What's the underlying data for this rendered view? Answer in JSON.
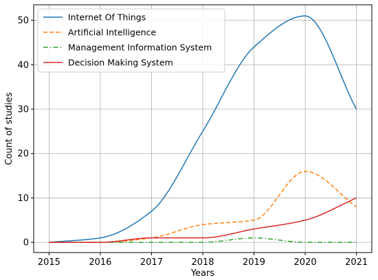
{
  "chart_data": {
    "type": "line",
    "xlabel": "Years",
    "ylabel": "Count of studies",
    "x": [
      2015,
      2016,
      2017,
      2018,
      2019,
      2020,
      2021
    ],
    "xlim": [
      2014.7,
      2021.3
    ],
    "ylim": [
      -2.3,
      53.5
    ],
    "yticks": [
      0,
      10,
      20,
      30,
      40,
      50
    ],
    "grid": true,
    "legend_position": "top-left",
    "series": [
      {
        "name": "Internet Of Things",
        "values": [
          0,
          1,
          7,
          25,
          44,
          51,
          30
        ],
        "color": "#1f77b4",
        "style": "solid"
      },
      {
        "name": "Artificial Intelligence",
        "values": [
          0,
          0,
          1,
          4,
          5,
          16,
          8
        ],
        "color": "#ff7f0e",
        "style": "dashed"
      },
      {
        "name": "Management Information System",
        "values": [
          0,
          0,
          0,
          0,
          1,
          0,
          0
        ],
        "color": "#2ca02c",
        "style": "dashdot"
      },
      {
        "name": "Decision Making System",
        "values": [
          0,
          0,
          1,
          1,
          3,
          5,
          10
        ],
        "color": "#d62728",
        "style": "solid"
      }
    ]
  }
}
